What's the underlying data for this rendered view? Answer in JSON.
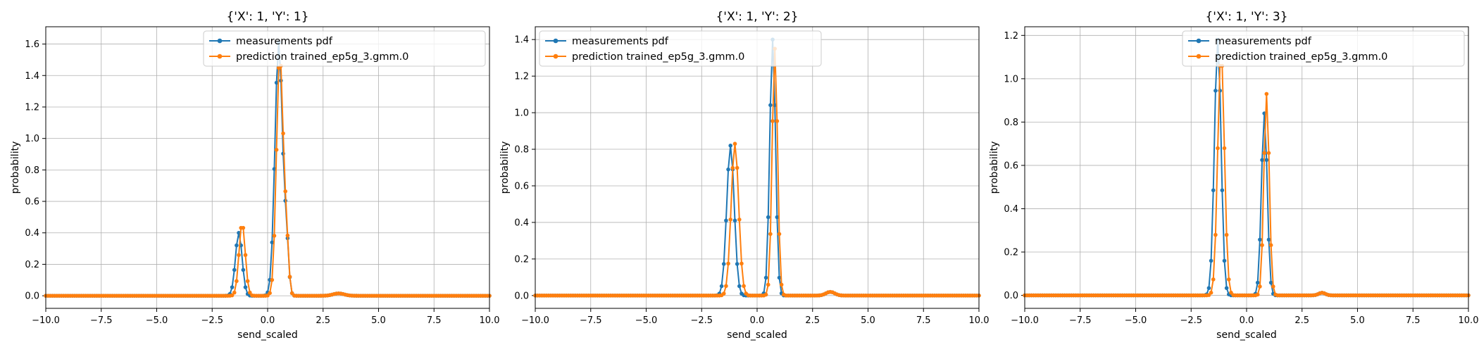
{
  "figure": {
    "background": "#ffffff"
  },
  "colors": {
    "measurements": "#1f77b4",
    "prediction": "#ff7f0e",
    "grid": "#b0b0b0",
    "legend_border": "#cccccc"
  },
  "chart_data": [
    {
      "type": "line",
      "title": "{'X': 1, 'Y': 1}",
      "xlabel": "send_scaled",
      "ylabel": "probability",
      "xlim": [
        -10.0,
        10.0
      ],
      "ylim": [
        -0.08,
        1.71
      ],
      "grid": true,
      "legend_position": "top-right",
      "xticks": [
        -10.0,
        -7.5,
        -5.0,
        -2.5,
        0.0,
        2.5,
        5.0,
        7.5,
        10.0
      ],
      "xtick_labels": [
        "−10.0",
        "−7.5",
        "−5.0",
        "−2.5",
        "0.0",
        "2.5",
        "5.0",
        "7.5",
        "10.0"
      ],
      "yticks": [
        0.0,
        0.2,
        0.4,
        0.6,
        0.8,
        1.0,
        1.2,
        1.4,
        1.6
      ],
      "ytick_labels": [
        "0.0",
        "0.2",
        "0.4",
        "0.6",
        "0.8",
        "1.0",
        "1.2",
        "1.4",
        "1.6"
      ],
      "x_start": -10.0,
      "x_step": 0.1,
      "n_points": 201,
      "series": [
        {
          "name": "measurements pdf",
          "components": [
            {
              "mu": -1.3,
              "sigma": 0.15,
              "peak": 0.4
            },
            {
              "mu": 0.5,
              "sigma": 0.17,
              "peak": 1.61
            },
            {
              "mu": 0.85,
              "sigma": 0.1,
              "peak": 0.3
            },
            {
              "mu": 3.2,
              "sigma": 0.25,
              "peak": 0.015
            }
          ]
        },
        {
          "name": "prediction trained_ep5g_3.gmm.0",
          "components": [
            {
              "mu": -1.15,
              "sigma": 0.14,
              "peak": 0.46
            },
            {
              "mu": 0.55,
              "sigma": 0.15,
              "peak": 1.53
            },
            {
              "mu": 0.85,
              "sigma": 0.1,
              "peak": 0.32
            },
            {
              "mu": 3.2,
              "sigma": 0.25,
              "peak": 0.015
            }
          ]
        }
      ]
    },
    {
      "type": "line",
      "title": "{'X': 1, 'Y': 2}",
      "xlabel": "send_scaled",
      "ylabel": "probability",
      "xlim": [
        -10.0,
        10.0
      ],
      "ylim": [
        -0.07,
        1.47
      ],
      "grid": true,
      "legend_position": "top-left",
      "xticks": [
        -10.0,
        -7.5,
        -5.0,
        -2.5,
        0.0,
        2.5,
        5.0,
        7.5,
        10.0
      ],
      "xtick_labels": [
        "−10.0",
        "−7.5",
        "−5.0",
        "−2.5",
        "0.0",
        "2.5",
        "5.0",
        "7.5",
        "10.0"
      ],
      "yticks": [
        0.0,
        0.2,
        0.4,
        0.6,
        0.8,
        1.0,
        1.2,
        1.4
      ],
      "ytick_labels": [
        "0.0",
        "0.2",
        "0.4",
        "0.6",
        "0.8",
        "1.0",
        "1.2",
        "1.4"
      ],
      "x_start": -10.0,
      "x_step": 0.1,
      "n_points": 201,
      "series": [
        {
          "name": "measurements pdf",
          "components": [
            {
              "mu": -1.2,
              "sigma": 0.17,
              "peak": 0.82
            },
            {
              "mu": 0.7,
              "sigma": 0.13,
              "peak": 1.4
            },
            {
              "mu": 3.3,
              "sigma": 0.2,
              "peak": 0.02
            }
          ]
        },
        {
          "name": "prediction trained_ep5g_3.gmm.0",
          "components": [
            {
              "mu": -1.0,
              "sigma": 0.17,
              "peak": 0.83
            },
            {
              "mu": 0.8,
              "sigma": 0.12,
              "peak": 1.35
            },
            {
              "mu": 3.3,
              "sigma": 0.2,
              "peak": 0.02
            }
          ]
        }
      ]
    },
    {
      "type": "line",
      "title": "{'X': 1, 'Y': 3}",
      "xlabel": "send_scaled",
      "ylabel": "probability",
      "xlim": [
        -10.0,
        10.0
      ],
      "ylim": [
        -0.06,
        1.24
      ],
      "grid": true,
      "legend_position": "top-right",
      "xticks": [
        -10.0,
        -7.5,
        -5.0,
        -2.5,
        0.0,
        2.5,
        5.0,
        7.5,
        10.0
      ],
      "xtick_labels": [
        "−10.0",
        "−7.5",
        "−5.0",
        "−2.5",
        "0.0",
        "2.5",
        "5.0",
        "7.5",
        "10.0"
      ],
      "yticks": [
        0.0,
        0.2,
        0.4,
        0.6,
        0.8,
        1.0,
        1.2
      ],
      "ytick_labels": [
        "0.0",
        "0.2",
        "0.4",
        "0.6",
        "0.8",
        "1.0",
        "1.2"
      ],
      "x_start": -10.0,
      "x_step": 0.1,
      "n_points": 201,
      "series": [
        {
          "name": "measurements pdf",
          "components": [
            {
              "mu": -1.3,
              "sigma": 0.15,
              "peak": 1.18
            },
            {
              "mu": 0.8,
              "sigma": 0.13,
              "peak": 0.84
            },
            {
              "mu": 3.4,
              "sigma": 0.15,
              "peak": 0.012
            }
          ]
        },
        {
          "name": "prediction trained_ep5g_3.gmm.0",
          "components": [
            {
              "mu": -1.15,
              "sigma": 0.15,
              "peak": 1.12
            },
            {
              "mu": 0.9,
              "sigma": 0.12,
              "peak": 0.93
            },
            {
              "mu": 3.4,
              "sigma": 0.15,
              "peak": 0.012
            }
          ]
        }
      ]
    }
  ]
}
